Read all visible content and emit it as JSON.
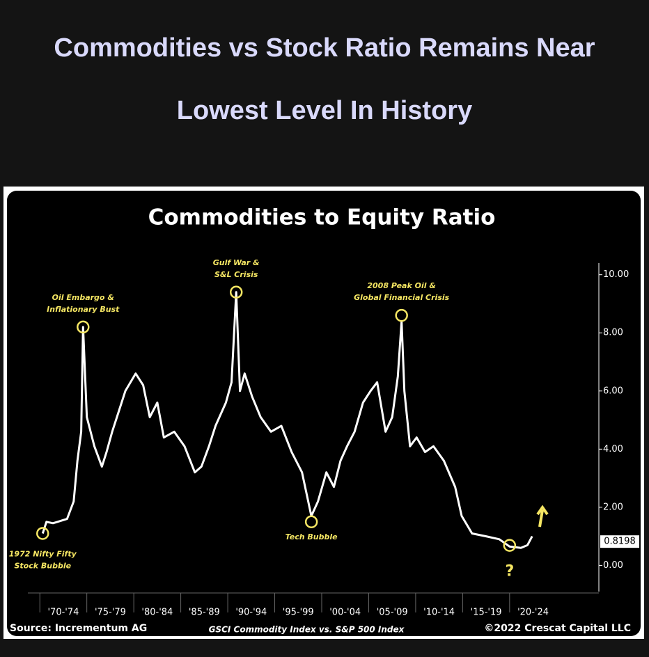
{
  "header": {
    "title_lines": [
      "Commodities vs Stock Ratio Remains Near",
      "Lowest Level In History"
    ]
  },
  "chart_data": {
    "type": "line",
    "title": "Commodities to Equity Ratio",
    "series": [
      {
        "name": "Commodities to Equity Ratio",
        "color": "#ffffff",
        "x": [
          1970.3,
          1970.7,
          1971.4,
          1972.9,
          1973.6,
          1974,
          1974.4,
          1974.6,
          1975,
          1975.8,
          1976.6,
          1977.1,
          1977.7,
          1978.4,
          1979.1,
          1980.2,
          1981,
          1981.7,
          1982.5,
          1983.2,
          1984.3,
          1985.4,
          1986.5,
          1987.2,
          1988,
          1988.7,
          1989.8,
          1990.4,
          1990.9,
          1991.3,
          1991.8,
          1992.6,
          1993.5,
          1994.6,
          1995.7,
          1996.8,
          1997.9,
          1998.9,
          1999.6,
          2000.5,
          2001.3,
          2002,
          2002.7,
          2003.5,
          2004.4,
          2005.2,
          2005.9,
          2006.8,
          2007.5,
          2008.1,
          2008.5,
          2008.8,
          2009.4,
          2010.1,
          2011,
          2011.9,
          2013,
          2014.2,
          2014.9,
          2016,
          2017.5,
          2018.9,
          2020,
          2021.2,
          2021.9,
          2022.4
        ],
        "values": [
          1.1,
          1.5,
          1.45,
          1.6,
          2.2,
          3.6,
          4.6,
          8.2,
          5.1,
          4.1,
          3.4,
          3.9,
          4.6,
          5.3,
          6.0,
          6.6,
          6.2,
          5.1,
          5.6,
          4.4,
          4.6,
          4.1,
          3.2,
          3.4,
          4.1,
          4.8,
          5.6,
          6.3,
          9.4,
          6.0,
          6.6,
          5.8,
          5.1,
          4.6,
          4.8,
          3.9,
          3.2,
          1.7,
          2.2,
          3.2,
          2.7,
          3.6,
          4.1,
          4.6,
          5.6,
          6.0,
          6.3,
          4.6,
          5.1,
          6.5,
          8.4,
          6.0,
          4.1,
          4.4,
          3.9,
          4.1,
          3.6,
          2.7,
          1.7,
          1.1,
          1.0,
          0.9,
          0.65,
          0.6,
          0.7,
          1.0
        ]
      }
    ],
    "current_value": 0.8198,
    "xlim": [
      1966.5,
      2029.5
    ],
    "xticks": [
      {
        "value": 1970,
        "label": "'70-'74"
      },
      {
        "value": 1975,
        "label": "'75-'79"
      },
      {
        "value": 1980,
        "label": "'80-'84"
      },
      {
        "value": 1985,
        "label": "'85-'89"
      },
      {
        "value": 1990,
        "label": "'90-'94"
      },
      {
        "value": 1995,
        "label": "'95-'99"
      },
      {
        "value": 2000,
        "label": "'00-'04"
      },
      {
        "value": 2005,
        "label": "'05-'09"
      },
      {
        "value": 2010,
        "label": "'10-'14"
      },
      {
        "value": 2015,
        "label": "'15-'19"
      },
      {
        "value": 2020,
        "label": "'20-'24"
      }
    ],
    "ylim": [
      -0.9,
      10.4
    ],
    "yticks": [
      {
        "value": 0,
        "label": "0.00"
      },
      {
        "value": 2,
        "label": "2.00"
      },
      {
        "value": 4,
        "label": "4.00"
      },
      {
        "value": 6,
        "label": "6.00"
      },
      {
        "value": 8,
        "label": "8.00"
      },
      {
        "value": 10,
        "label": "10.00"
      }
    ],
    "annotations": [
      {
        "text": [
          "1972 Nifty Fifty",
          "Stock Bubble"
        ],
        "x": 1970.3,
        "y": 1.1
      },
      {
        "text": [
          "Oil Embargo &",
          "Inflationary Bust"
        ],
        "x": 1974.6,
        "y": 8.2
      },
      {
        "text": [
          "Gulf War &",
          "S&L Crisis"
        ],
        "x": 1990.9,
        "y": 9.4
      },
      {
        "text": [
          "Tech Bubble"
        ],
        "x": 1998.9,
        "y": 1.5
      },
      {
        "text": [
          "2008 Peak Oil &",
          "Global Financial Crisis"
        ],
        "x": 2008.5,
        "y": 8.6
      },
      {
        "text": [
          "?"
        ],
        "x": 2020,
        "y": 0.45
      }
    ],
    "footer": {
      "source": "Source: Incrementum AG",
      "note": "GSCI Commodity Index vs. S&P 500 Index",
      "copyright": "©2022 Crescat Capital LLC"
    }
  }
}
